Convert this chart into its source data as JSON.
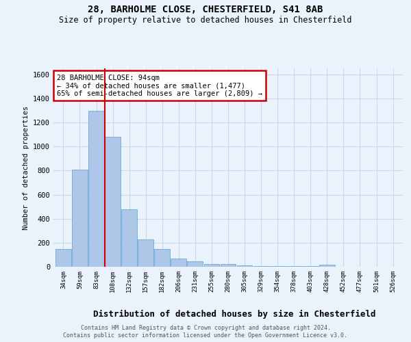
{
  "title1": "28, BARHOLME CLOSE, CHESTERFIELD, S41 8AB",
  "title2": "Size of property relative to detached houses in Chesterfield",
  "xlabel": "Distribution of detached houses by size in Chesterfield",
  "ylabel": "Number of detached properties",
  "categories": [
    "34sqm",
    "59sqm",
    "83sqm",
    "108sqm",
    "132sqm",
    "157sqm",
    "182sqm",
    "206sqm",
    "231sqm",
    "255sqm",
    "280sqm",
    "305sqm",
    "329sqm",
    "354sqm",
    "378sqm",
    "403sqm",
    "428sqm",
    "452sqm",
    "477sqm",
    "501sqm",
    "526sqm"
  ],
  "values": [
    150,
    810,
    1300,
    1080,
    480,
    230,
    150,
    70,
    45,
    25,
    20,
    10,
    5,
    5,
    5,
    5,
    15,
    2,
    2,
    2,
    2
  ],
  "bar_color": "#aec6e8",
  "bar_edge_color": "#5a9fd4",
  "grid_color": "#c8d8e8",
  "background_color": "#eaf2fb",
  "red_line_index": 2,
  "annotation_text": "28 BARHOLME CLOSE: 94sqm\n← 34% of detached houses are smaller (1,477)\n65% of semi-detached houses are larger (2,809) →",
  "annotation_box_color": "#ffffff",
  "annotation_border_color": "#cc0000",
  "ylim": [
    0,
    1650
  ],
  "yticks": [
    0,
    200,
    400,
    600,
    800,
    1000,
    1200,
    1400,
    1600
  ],
  "footer1": "Contains HM Land Registry data © Crown copyright and database right 2024.",
  "footer2": "Contains public sector information licensed under the Open Government Licence v3.0."
}
